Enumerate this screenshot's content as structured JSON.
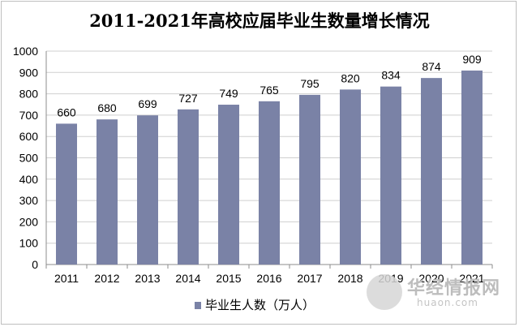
{
  "chart_data": {
    "type": "bar",
    "title": "2011-2021年高校应届毕业生数量增长情况",
    "categories": [
      "2011",
      "2012",
      "2013",
      "2014",
      "2015",
      "2016",
      "2017",
      "2018",
      "2019",
      "2020",
      "2021"
    ],
    "series": [
      {
        "name": "毕业生人数（万人）",
        "values": [
          660,
          680,
          699,
          727,
          749,
          765,
          795,
          820,
          834,
          874,
          909
        ],
        "color": "#7a82a6"
      }
    ],
    "ylim": [
      0,
      1000
    ],
    "yticks": [
      0,
      100,
      200,
      300,
      400,
      500,
      600,
      700,
      800,
      900,
      1000
    ],
    "grid": true,
    "legend": "bottom",
    "xlabel": "",
    "ylabel": ""
  },
  "watermark": {
    "text": "华经情报网",
    "url": "huaon.com"
  }
}
